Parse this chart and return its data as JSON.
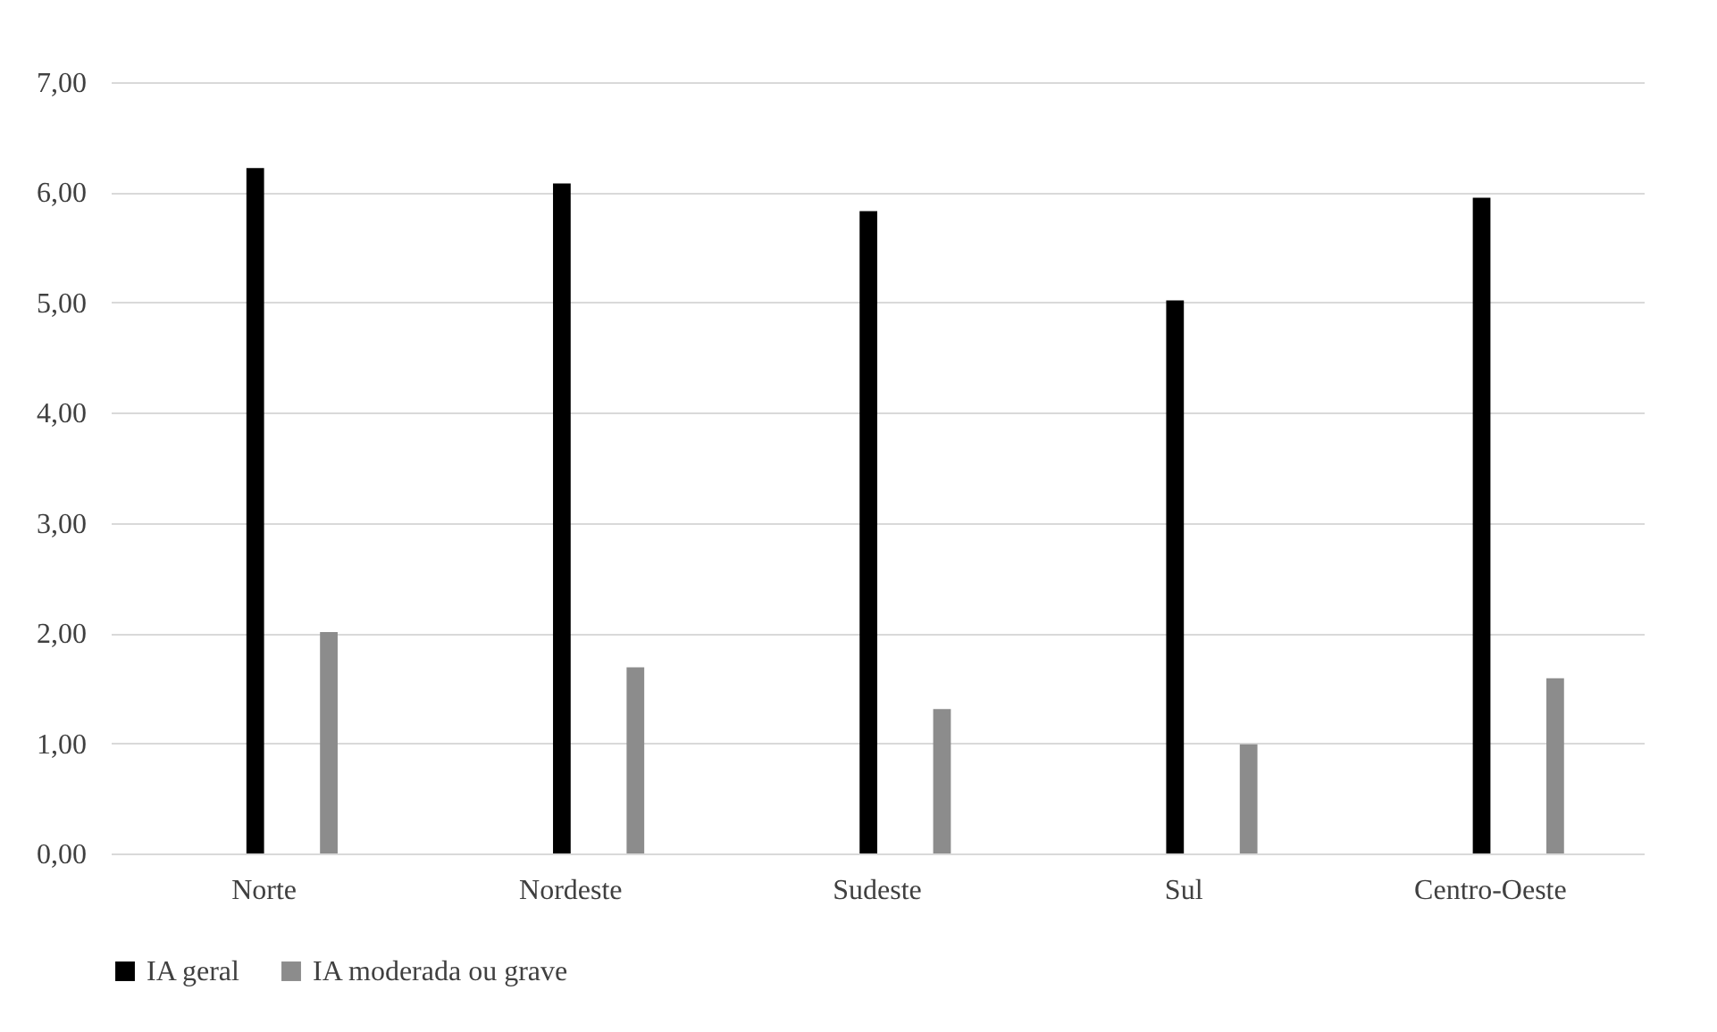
{
  "chart_data": {
    "type": "bar",
    "categories": [
      "Norte",
      "Nordeste",
      "Sudeste",
      "Sul",
      "Centro-Oeste"
    ],
    "series": [
      {
        "name": "IA geral",
        "color": "#000000",
        "values": [
          6.22,
          6.08,
          5.83,
          5.02,
          5.95
        ]
      },
      {
        "name": "IA moderada ou grave",
        "color": "#8c8c8c",
        "values": [
          2.01,
          1.69,
          1.31,
          0.99,
          1.59
        ]
      }
    ],
    "ylim": [
      0,
      7
    ],
    "yticks": [
      {
        "value": 0,
        "label": "0,00"
      },
      {
        "value": 1,
        "label": "1,00"
      },
      {
        "value": 2,
        "label": "2,00"
      },
      {
        "value": 3,
        "label": "3,00"
      },
      {
        "value": 4,
        "label": "4,00"
      },
      {
        "value": 5,
        "label": "5,00"
      },
      {
        "value": 6,
        "label": "6,00"
      },
      {
        "value": 7,
        "label": "7,00"
      }
    ],
    "grid": "y",
    "legend": "bottom"
  }
}
